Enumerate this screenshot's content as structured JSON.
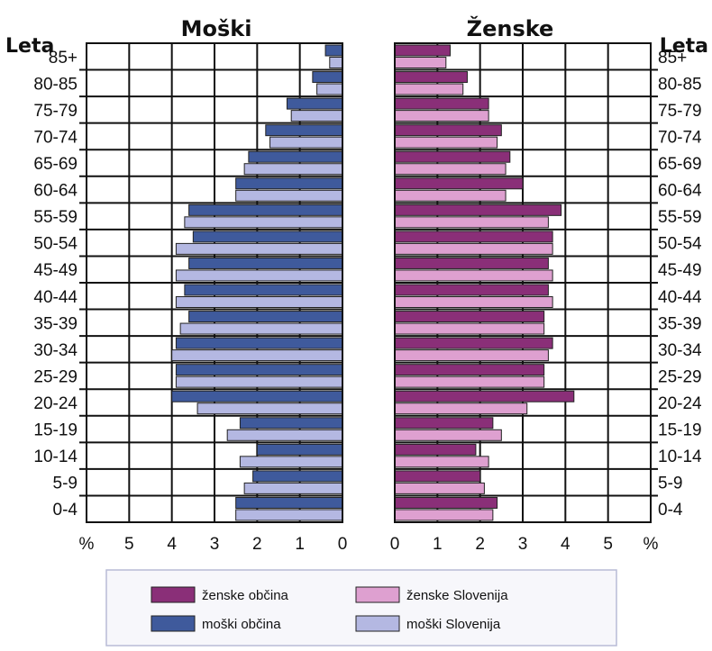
{
  "chart_data": {
    "type": "bar",
    "subtype": "population-pyramid",
    "categories": [
      "0-4",
      "5-9",
      "10-14",
      "15-19",
      "20-24",
      "25-29",
      "30-34",
      "35-39",
      "40-44",
      "45-49",
      "50-54",
      "55-59",
      "60-64",
      "65-69",
      "70-74",
      "75-79",
      "80-85",
      "85+"
    ],
    "left_panel": {
      "title": "Moški",
      "y_axis_label": "Leta",
      "x_ticks": [
        "%",
        "5",
        "4",
        "3",
        "2",
        "1",
        "0"
      ],
      "xlim": [
        0,
        6
      ],
      "series": [
        {
          "name": "moški občina",
          "color": "#3f5a9c",
          "values": [
            2.5,
            2.1,
            2.0,
            2.4,
            4.0,
            3.9,
            3.9,
            3.6,
            3.7,
            3.6,
            3.5,
            3.6,
            2.5,
            2.2,
            1.8,
            1.3,
            0.7,
            0.4
          ]
        },
        {
          "name": "moški Slovenija",
          "color": "#b4b8e2",
          "values": [
            2.5,
            2.3,
            2.4,
            2.7,
            3.4,
            3.9,
            4.0,
            3.8,
            3.9,
            3.9,
            3.9,
            3.7,
            2.5,
            2.3,
            1.7,
            1.2,
            0.6,
            0.3
          ]
        }
      ]
    },
    "right_panel": {
      "title": "Ženske",
      "y_axis_label": "Leta",
      "x_ticks": [
        "0",
        "1",
        "2",
        "3",
        "4",
        "5",
        "%"
      ],
      "xlim": [
        0,
        6
      ],
      "series": [
        {
          "name": "ženske občina",
          "color": "#8a2f78",
          "values": [
            2.4,
            2.0,
            1.9,
            2.3,
            4.2,
            3.5,
            3.7,
            3.5,
            3.6,
            3.6,
            3.7,
            3.9,
            3.0,
            2.7,
            2.5,
            2.2,
            1.7,
            1.3
          ]
        },
        {
          "name": "ženske Slovenija",
          "color": "#dea0d0",
          "values": [
            2.3,
            2.1,
            2.2,
            2.5,
            3.1,
            3.5,
            3.6,
            3.5,
            3.7,
            3.7,
            3.7,
            3.6,
            2.6,
            2.6,
            2.4,
            2.2,
            1.6,
            1.2
          ]
        }
      ]
    },
    "legend": [
      {
        "label": "ženske občina",
        "color": "#8a2f78"
      },
      {
        "label": "ženske Slovenija",
        "color": "#dea0d0"
      },
      {
        "label": "moški občina",
        "color": "#3f5a9c"
      },
      {
        "label": "moški Slovenija",
        "color": "#b4b8e2"
      }
    ],
    "grid": true,
    "legend_position": "bottom"
  }
}
